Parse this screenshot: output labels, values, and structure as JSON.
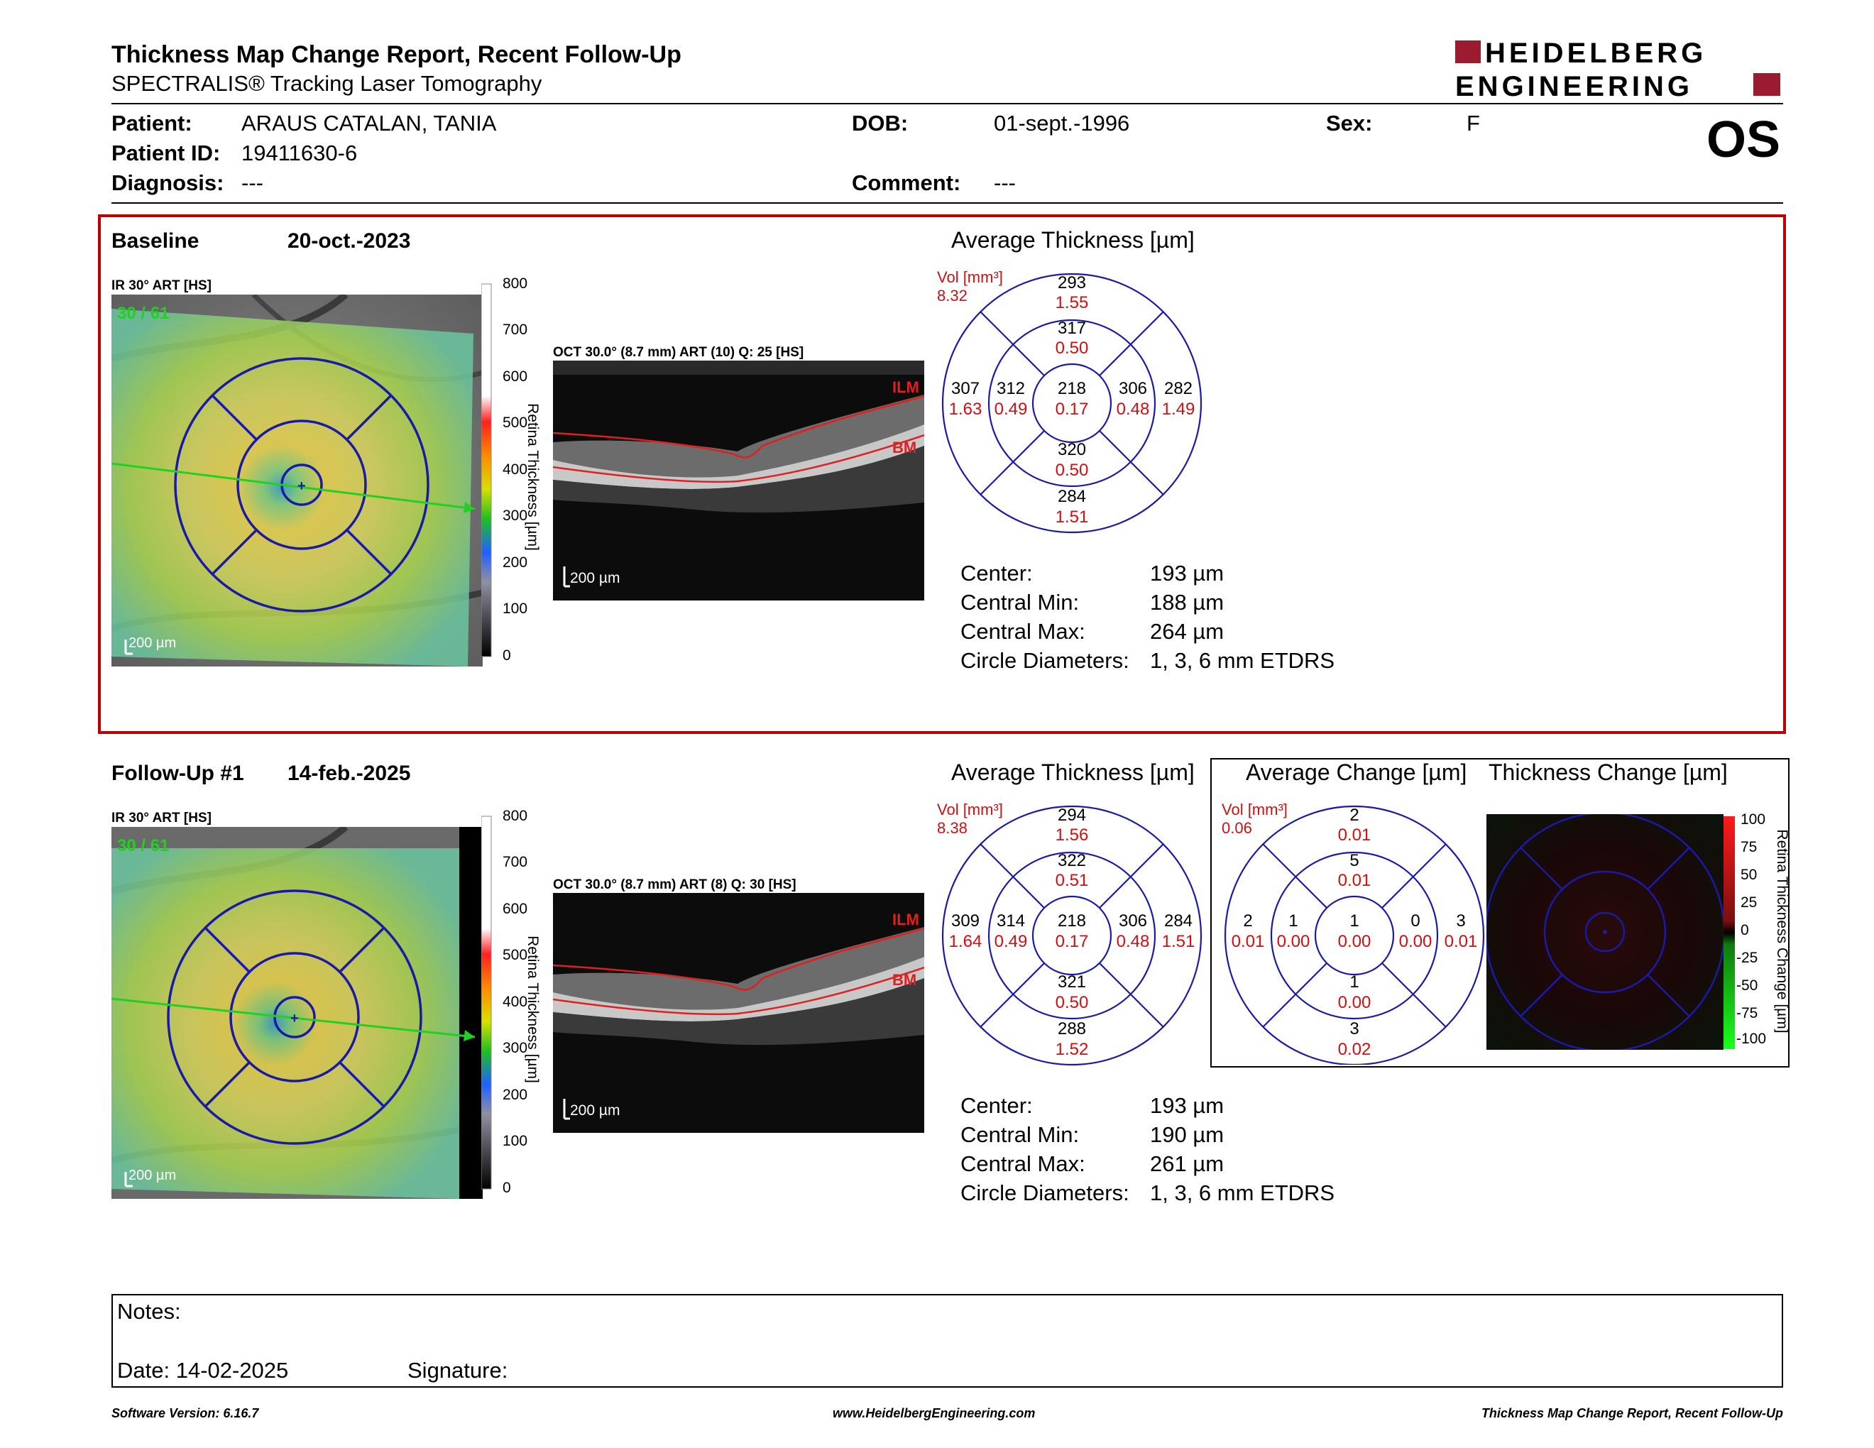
{
  "header": {
    "title": "Thickness Map Change Report, Recent Follow-Up",
    "subtitle": "SPECTRALIS® Tracking Laser Tomography",
    "logo_line1": "HEIDELBERG",
    "logo_line2": "ENGINEERING",
    "eye": "OS"
  },
  "patient": {
    "patient_label": "Patient:",
    "patient_value": "ARAUS CATALAN, TANIA",
    "id_label": "Patient ID:",
    "id_value": "19411630-6",
    "diag_label": "Diagnosis:",
    "diag_value": "---",
    "dob_label": "DOB:",
    "dob_value": "01-sept.-1996",
    "comment_label": "Comment:",
    "comment_value": "---",
    "sex_label": "Sex:",
    "sex_value": "F"
  },
  "baseline": {
    "label": "Baseline",
    "date": "20-oct.-2023",
    "ir_caption": "IR 30° ART [HS]",
    "ir_counter": "30 / 61",
    "ir_scale": "200 µm",
    "oct_caption": "OCT 30.0° (8.7 mm) ART (10) Q: 25 [HS]",
    "oct_scale": "200 µm",
    "colorbar_ticks": [
      "800",
      "700",
      "600",
      "500",
      "400",
      "300",
      "200",
      "100",
      "0"
    ],
    "colorbar_title": "Retina Thickness [µm]",
    "ilm": "ILM",
    "bm": "BM",
    "avg_title": "Average Thickness [µm]",
    "vol_label": "Vol [mm³]",
    "vol_total": "8.32",
    "grid": {
      "outer_top": [
        "293",
        "1.55"
      ],
      "inner_top": [
        "317",
        "0.50"
      ],
      "outer_left": [
        "307",
        "1.63"
      ],
      "inner_left": [
        "312",
        "0.49"
      ],
      "center": [
        "218",
        "0.17"
      ],
      "inner_right": [
        "306",
        "0.48"
      ],
      "outer_right": [
        "282",
        "1.49"
      ],
      "inner_bottom": [
        "320",
        "0.50"
      ],
      "outer_bottom": [
        "284",
        "1.51"
      ]
    },
    "stats": {
      "center_label": "Center:",
      "center_value": "193 µm",
      "min_label": "Central Min:",
      "min_value": "188 µm",
      "max_label": "Central Max:",
      "max_value": "264 µm",
      "diam_label": "Circle Diameters:",
      "diam_value": "1, 3, 6 mm ETDRS"
    }
  },
  "followup": {
    "label": "Follow-Up #1",
    "date": "14-feb.-2025",
    "ir_caption": "IR 30° ART [HS]",
    "ir_counter": "30 / 61",
    "ir_scale": "200 µm",
    "oct_caption": "OCT 30.0° (8.7 mm) ART (8) Q: 30 [HS]",
    "oct_scale": "200 µm",
    "colorbar_ticks": [
      "800",
      "700",
      "600",
      "500",
      "400",
      "300",
      "200",
      "100",
      "0"
    ],
    "colorbar_title": "Retina Thickness [µm]",
    "ilm": "ILM",
    "bm": "BM",
    "avg_title": "Average Thickness [µm]",
    "vol_label": "Vol [mm³]",
    "vol_total": "8.38",
    "grid": {
      "outer_top": [
        "294",
        "1.56"
      ],
      "inner_top": [
        "322",
        "0.51"
      ],
      "outer_left": [
        "309",
        "1.64"
      ],
      "inner_left": [
        "314",
        "0.49"
      ],
      "center": [
        "218",
        "0.17"
      ],
      "inner_right": [
        "306",
        "0.48"
      ],
      "outer_right": [
        "284",
        "1.51"
      ],
      "inner_bottom": [
        "321",
        "0.50"
      ],
      "outer_bottom": [
        "288",
        "1.52"
      ]
    },
    "stats": {
      "center_label": "Center:",
      "center_value": "193 µm",
      "min_label": "Central Min:",
      "min_value": "190 µm",
      "max_label": "Central Max:",
      "max_value": "261 µm",
      "diam_label": "Circle Diameters:",
      "diam_value": "1, 3, 6 mm ETDRS"
    },
    "change_title": "Average Change [µm]",
    "change_vol_label": "Vol [mm³]",
    "change_vol_total": "0.06",
    "change_grid": {
      "outer_top": [
        "2",
        "0.01"
      ],
      "inner_top": [
        "5",
        "0.01"
      ],
      "outer_left": [
        "2",
        "0.01"
      ],
      "inner_left": [
        "1",
        "0.00"
      ],
      "center": [
        "1",
        "0.00"
      ],
      "inner_right": [
        "0",
        "0.00"
      ],
      "outer_right": [
        "3",
        "0.01"
      ],
      "inner_bottom": [
        "1",
        "0.00"
      ],
      "outer_bottom": [
        "3",
        "0.02"
      ]
    },
    "tchange_title": "Thickness Change [µm]",
    "tchange_ticks": [
      "100",
      "75",
      "50",
      "25",
      "0",
      "-25",
      "-50",
      "-75",
      "-100"
    ],
    "tchange_bar_title": "Retina Thickness Change [µm]"
  },
  "notes": {
    "notes_label": "Notes:",
    "date_label": "Date: 14-02-2025",
    "signature_label": "Signature:"
  },
  "footer": {
    "version": "Software Version: 6.16.7",
    "url": "www.HeidelbergEngineering.com",
    "report": "Thickness Map Change Report, Recent Follow-Up"
  },
  "colors": {
    "frame_red": "#c00000",
    "logo_red": "#9b1b30",
    "grid_blue": "#1a1aa8",
    "value_red": "#d01010",
    "scan_green": "#22d022"
  }
}
